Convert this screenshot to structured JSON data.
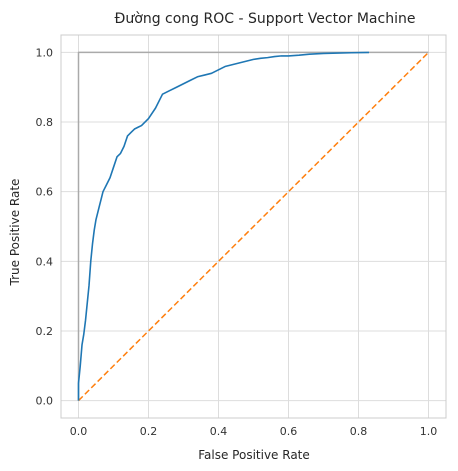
{
  "chart_data": {
    "type": "line",
    "title": "Đường cong ROC - Support Vector Machine",
    "xlabel": "False Positive Rate",
    "ylabel": "True Positive Rate",
    "xlim": [
      -0.05,
      1.05
    ],
    "ylim": [
      -0.05,
      1.05
    ],
    "grid": true,
    "xticks": [
      0.0,
      0.2,
      0.4,
      0.6,
      0.8,
      1.0
    ],
    "yticks": [
      0.0,
      0.2,
      0.4,
      0.6,
      0.8,
      1.0
    ],
    "xtick_labels": [
      "0.0",
      "0.2",
      "0.4",
      "0.6",
      "0.8",
      "1.0"
    ],
    "ytick_labels": [
      "0.0",
      "0.2",
      "0.4",
      "0.6",
      "0.8",
      "1.0"
    ],
    "series": [
      {
        "color": "#1f77b4",
        "style": "solid",
        "x": [
          0.0,
          0.0,
          0.005,
          0.01,
          0.015,
          0.02,
          0.025,
          0.03,
          0.035,
          0.04,
          0.045,
          0.05,
          0.055,
          0.06,
          0.065,
          0.07,
          0.08,
          0.09,
          0.1,
          0.11,
          0.12,
          0.13,
          0.14,
          0.15,
          0.16,
          0.17,
          0.18,
          0.2,
          0.22,
          0.24,
          0.26,
          0.28,
          0.3,
          0.32,
          0.34,
          0.36,
          0.38,
          0.4,
          0.42,
          0.44,
          0.46,
          0.48,
          0.5,
          0.52,
          0.54,
          0.56,
          0.58,
          0.6,
          0.63,
          0.66,
          0.7,
          0.74,
          0.78,
          0.83
        ],
        "y": [
          0.0,
          0.05,
          0.1,
          0.16,
          0.19,
          0.23,
          0.28,
          0.33,
          0.4,
          0.45,
          0.49,
          0.52,
          0.54,
          0.56,
          0.58,
          0.6,
          0.62,
          0.64,
          0.67,
          0.7,
          0.71,
          0.73,
          0.76,
          0.77,
          0.78,
          0.785,
          0.79,
          0.81,
          0.84,
          0.88,
          0.89,
          0.9,
          0.91,
          0.92,
          0.93,
          0.935,
          0.94,
          0.95,
          0.96,
          0.965,
          0.97,
          0.975,
          0.98,
          0.983,
          0.985,
          0.988,
          0.99,
          0.99,
          0.992,
          0.995,
          0.997,
          0.998,
          0.999,
          1.0
        ]
      },
      {
        "color": "#ff7f0e",
        "style": "dashed",
        "x": [
          0.0,
          1.0
        ],
        "y": [
          0.0,
          1.0
        ]
      },
      {
        "color": "#aaaaaa",
        "style": "solid",
        "x": [
          0.0,
          0.0,
          1.0
        ],
        "y": [
          0.0,
          1.0,
          1.0
        ]
      }
    ]
  }
}
